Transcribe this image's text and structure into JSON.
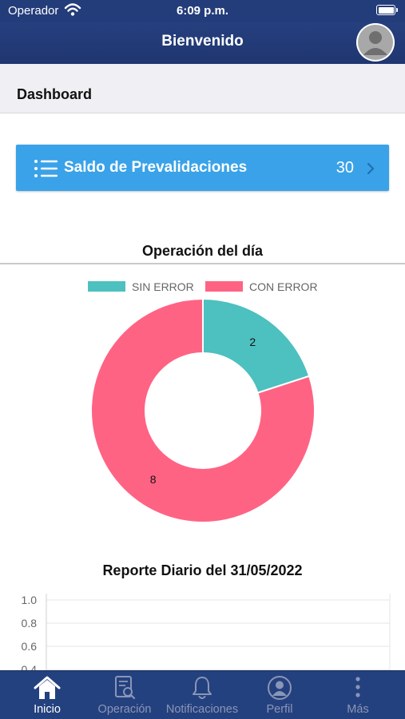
{
  "status_bar": {
    "carrier": "Operador",
    "time": "6:09 p.m."
  },
  "nav": {
    "title": "Bienvenido"
  },
  "section": {
    "title": "Dashboard"
  },
  "saldo": {
    "label": "Saldo de Prevalidaciones",
    "count": "30"
  },
  "donut": {
    "title": "Operación del día",
    "legend": [
      {
        "label": "SIN ERROR",
        "color": "#4dc0c0"
      },
      {
        "label": "CON ERROR",
        "color": "#ff6384"
      }
    ]
  },
  "report": {
    "title": "Reporte Diario del 31/05/2022",
    "y_ticks": [
      "1.0",
      "0.8",
      "0.6",
      "0.4"
    ]
  },
  "chart_data": [
    {
      "type": "pie",
      "title": "Operación del día",
      "categories": [
        "SIN ERROR",
        "CON ERROR"
      ],
      "values": [
        2,
        8
      ],
      "colors": [
        "#4dc0c0",
        "#ff6384"
      ],
      "legend": "top"
    },
    {
      "type": "line",
      "title": "Reporte Diario del 31/05/2022",
      "series": [],
      "ylim": [
        0,
        1.0
      ],
      "y_ticks": [
        1.0,
        0.8,
        0.6,
        0.4
      ],
      "grid": true
    }
  ],
  "tabs": [
    {
      "label": "Inicio",
      "icon": "home-icon",
      "active": true
    },
    {
      "label": "Operación",
      "icon": "document-search-icon",
      "active": false
    },
    {
      "label": "Notificaciones",
      "icon": "bell-icon",
      "active": false
    },
    {
      "label": "Perfil",
      "icon": "user-circle-icon",
      "active": false
    },
    {
      "label": "Más",
      "icon": "more-vertical-icon",
      "active": false
    }
  ]
}
